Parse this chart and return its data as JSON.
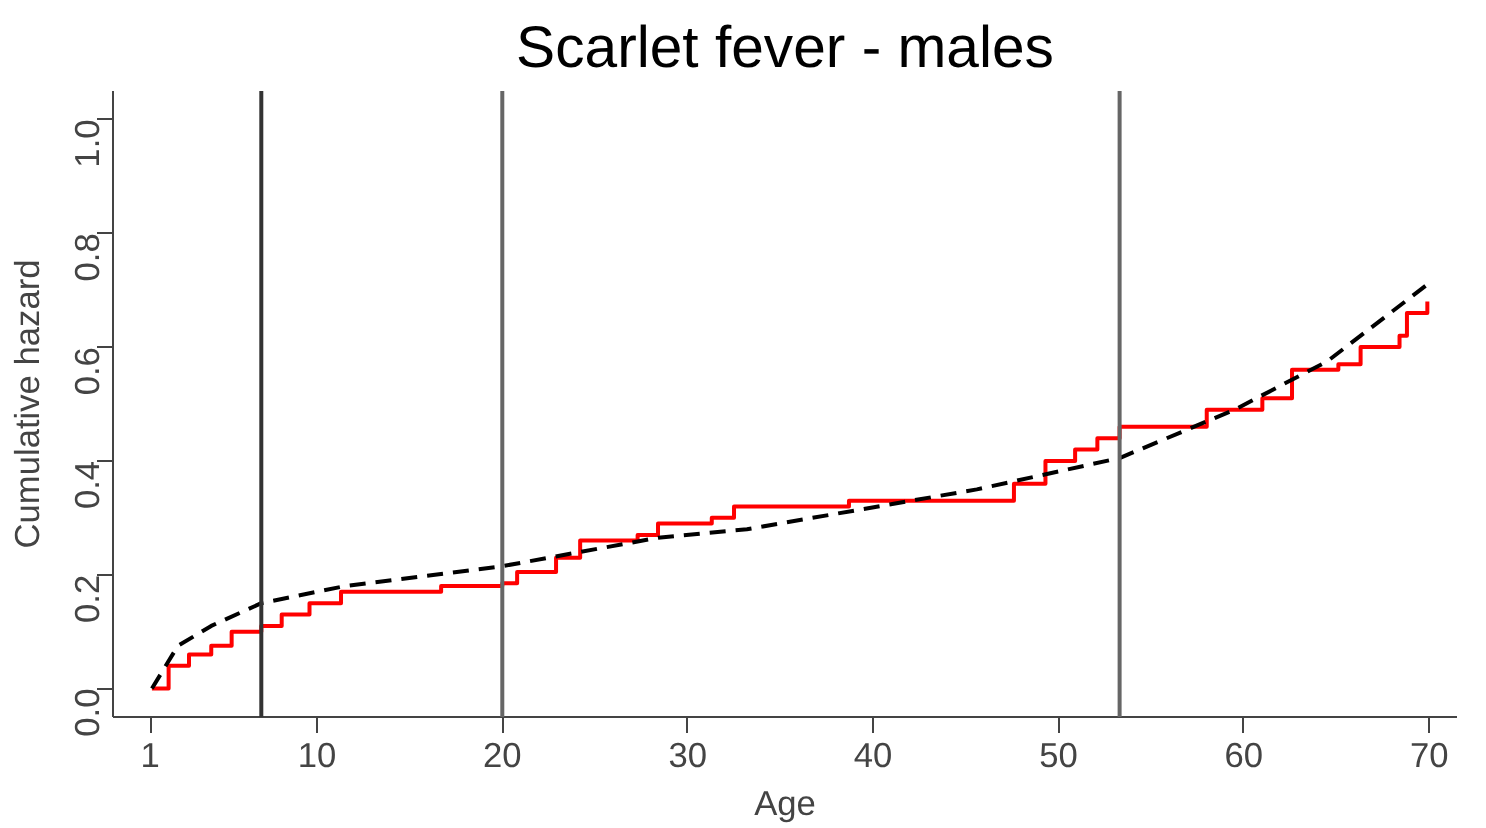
{
  "chart_data": {
    "type": "step",
    "title": "Scarlet fever - males",
    "xlabel": "Age",
    "ylabel": "Cumulative hazard",
    "xlim": [
      -1,
      71.5
    ],
    "ylim": [
      -0.05,
      1.05
    ],
    "xticks": [
      1,
      10,
      20,
      30,
      40,
      50,
      60,
      70
    ],
    "yticks": [
      {
        "value": 0,
        "label": "0.0"
      },
      0.2,
      0.4,
      0.6,
      0.8,
      {
        "value": 1,
        "label": "1.0"
      }
    ],
    "grid": false,
    "series": [
      {
        "color": "#ff0000",
        "line_style": "solid",
        "x": [
          1.1,
          2,
          3.1,
          4.3,
          5.4,
          7,
          8.1,
          9.6,
          11.3,
          16.7,
          20,
          20.8,
          22.9,
          24.2,
          27.3,
          28.4,
          31.3,
          32.5,
          38.7,
          46.5,
          47.6,
          49.3,
          50.9,
          52.1,
          53.3,
          57.7,
          58,
          61,
          62.6,
          65.1,
          66.3,
          68.4,
          68.8,
          69.9
        ],
        "values": [
          0,
          0.04,
          0.06,
          0.075,
          0.1,
          0.11,
          0.13,
          0.15,
          0.17,
          0.18,
          0.185,
          0.205,
          0.23,
          0.26,
          0.27,
          0.29,
          0.3,
          0.32,
          0.33,
          0.33,
          0.36,
          0.4,
          0.42,
          0.44,
          0.46,
          0.46,
          0.49,
          0.51,
          0.56,
          0.57,
          0.6,
          0.62,
          0.66,
          0.68
        ]
      },
      {
        "type": "line",
        "color": "#000000",
        "line_style": "dashed",
        "x": [
          1.1,
          2.5,
          4.3,
          7,
          11.5,
          20,
          28.4,
          33.2,
          45.6,
          53.3,
          59.5,
          64.5,
          69.9
        ],
        "values": [
          0,
          0.075,
          0.11,
          0.15,
          0.18,
          0.215,
          0.265,
          0.28,
          0.35,
          0.405,
          0.49,
          0.575,
          0.71
        ]
      }
    ],
    "ref_lines": [
      {
        "axis": "x",
        "value": 7,
        "color": "#333333"
      },
      {
        "axis": "x",
        "value": 20,
        "color": "#666666"
      },
      {
        "axis": "x",
        "value": 53.3,
        "color": "#666666"
      }
    ]
  }
}
